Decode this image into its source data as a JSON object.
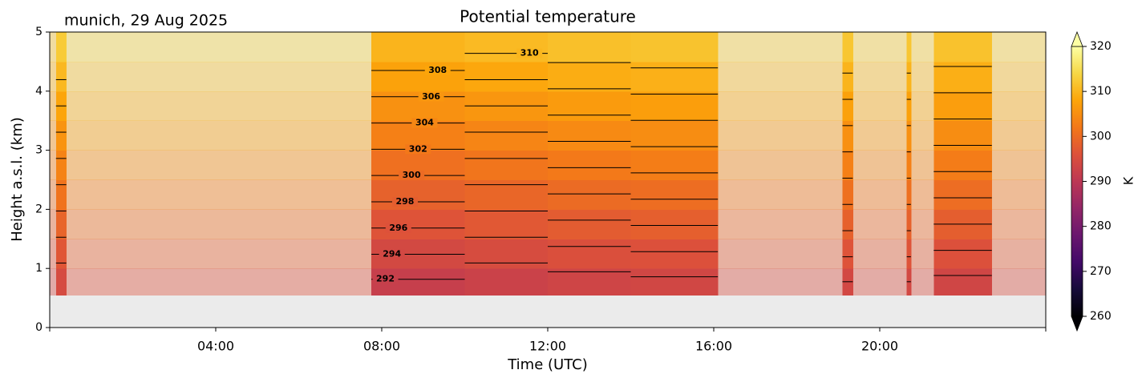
{
  "chart_data": {
    "type": "contour",
    "title": "Potential temperature",
    "subtitle": "munich, 29 Aug 2025",
    "xlabel": "Time (UTC)",
    "ylabel": "Height a.s.l. (km)",
    "xlim": [
      0,
      24
    ],
    "xticks": [
      {
        "value": 4,
        "label": "04:00"
      },
      {
        "value": 8,
        "label": "08:00"
      },
      {
        "value": 12,
        "label": "12:00"
      },
      {
        "value": 16,
        "label": "16:00"
      },
      {
        "value": 20,
        "label": "20:00"
      }
    ],
    "ylim": [
      0,
      5
    ],
    "yticks": [
      0,
      1,
      2,
      3,
      4,
      5
    ],
    "x_edges": [
      0,
      0.15,
      0.4,
      7.75,
      10,
      12,
      14,
      16.1,
      19.1,
      19.35,
      20.65,
      20.75,
      21.3,
      22.7,
      24
    ],
    "y_edges": [
      0.55,
      1,
      1.5,
      2,
      2.5,
      3,
      3.5,
      4,
      4.5,
      5
    ],
    "valid": [
      false,
      true,
      false,
      true,
      true,
      true,
      true,
      false,
      true,
      false,
      true,
      false,
      true,
      false
    ],
    "z": [
      [
        294,
        294.5,
        296,
        291.8,
        292.5,
        293.2,
        293.6,
        295,
        294,
        295,
        294,
        295,
        293.5,
        295
      ],
      [
        296.25,
        296.75,
        298.25,
        294.05,
        294.75,
        295.45,
        295.85,
        297.25,
        296.25,
        297.25,
        296.25,
        297.25,
        295.75,
        297.25
      ],
      [
        298.5,
        299,
        300.5,
        296.3,
        297,
        297.7,
        298.1,
        299.5,
        298.5,
        299.5,
        298.5,
        299.5,
        298,
        299.5
      ],
      [
        300.75,
        301.25,
        302.75,
        298.55,
        299.25,
        299.95,
        300.35,
        301.75,
        300.75,
        301.75,
        300.75,
        301.75,
        300.25,
        301.75
      ],
      [
        303,
        303.5,
        305,
        300.8,
        301.5,
        302.2,
        302.6,
        304,
        303,
        304,
        303,
        304,
        302.5,
        304
      ],
      [
        305.25,
        305.75,
        307.25,
        303.05,
        303.75,
        304.45,
        304.85,
        306.25,
        305.25,
        306.25,
        305.25,
        306.25,
        304.75,
        306.25
      ],
      [
        307.5,
        308,
        309.5,
        305.3,
        306,
        306.7,
        307.1,
        308.5,
        307.5,
        308.5,
        307.5,
        308.5,
        307,
        308.5
      ],
      [
        309.75,
        310.25,
        311.75,
        307.55,
        308.25,
        308.95,
        309.35,
        310.75,
        309.75,
        310.75,
        309.75,
        310.75,
        309.25,
        310.75
      ],
      [
        312,
        312.5,
        314,
        309.8,
        310.5,
        311.2,
        311.6,
        313,
        312,
        313,
        312,
        313,
        311.5,
        313
      ]
    ],
    "levels": [
      292,
      294,
      296,
      298,
      300,
      302,
      304,
      306,
      308,
      310
    ],
    "colorscale": [
      "#000004",
      "#160b39",
      "#420a68",
      "#6a176e",
      "#932667",
      "#bc3754",
      "#dd513a",
      "#f37819",
      "#fca50a",
      "#f6d746",
      "#fcffa4"
    ],
    "colorbar": {
      "label": "K",
      "lim": [
        260,
        320
      ],
      "ticks": [
        260,
        270,
        280,
        290,
        300,
        310,
        320
      ],
      "extend": "both"
    }
  }
}
